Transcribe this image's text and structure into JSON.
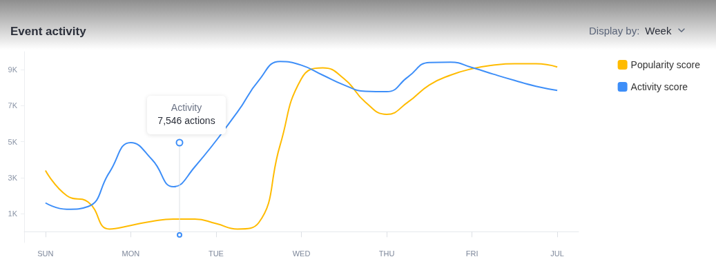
{
  "chart_data": {
    "type": "line",
    "title": "Event activity",
    "annotations": [
      "Activity",
      "7,546 actions",
      "Display by:",
      "Week"
    ],
    "categories": [
      null,
      "SUN",
      null,
      null,
      null,
      "MON",
      null,
      null,
      null,
      "TUE",
      null,
      null,
      null,
      "WED",
      null,
      null,
      null,
      "THU",
      null,
      null,
      null,
      "FRI",
      null,
      null,
      null,
      "JUL",
      null
    ],
    "ylim": [
      -600,
      10000
    ],
    "yticks": [
      {
        "value": 1000,
        "label": "1K"
      },
      {
        "value": 3000,
        "label": "3K"
      },
      {
        "value": 5000,
        "label": "5K"
      },
      {
        "value": 7000,
        "label": "7K"
      },
      {
        "value": 9000,
        "label": "9K"
      }
    ],
    "grid": false,
    "legend": "top right",
    "marker": "none",
    "line_style": "solid",
    "series": [
      {
        "name": "Popularity score",
        "color": "#ffbb00",
        "values": [
          null,
          3400,
          2000,
          1650,
          150,
          350,
          580,
          700,
          700,
          450,
          150,
          500,
          4800,
          8500,
          9100,
          8500,
          7200,
          6520,
          7200,
          8150,
          8700,
          9050,
          9250,
          9330,
          9330,
          9150,
          null
        ]
      },
      {
        "name": "Activity score",
        "color": "#3d8ef8",
        "values": [
          null,
          1600,
          1250,
          1400,
          3300,
          4950,
          4000,
          2500,
          3600,
          null,
          6650,
          8400,
          9450,
          9250,
          8700,
          8150,
          7800,
          7780,
          8600,
          9400,
          9420,
          9120,
          8750,
          8400,
          8080,
          7850,
          null
        ]
      }
    ]
  }
}
